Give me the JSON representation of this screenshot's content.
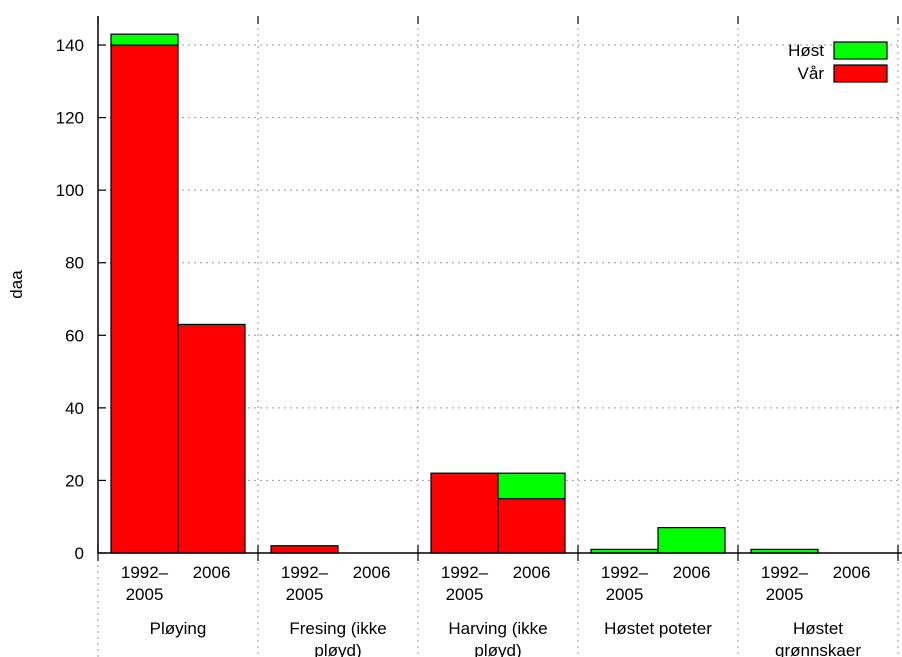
{
  "chart_data": {
    "type": "bar",
    "stacked": true,
    "ylabel": "daa",
    "ylim": [
      0,
      148
    ],
    "yticks": [
      0,
      20,
      40,
      60,
      80,
      100,
      120,
      140
    ],
    "grid": true,
    "legend_position": "top-right",
    "groups": [
      {
        "label": [
          "Pløying"
        ],
        "periods": [
          [
            "1992–",
            "2005"
          ],
          [
            "2006"
          ]
        ]
      },
      {
        "label": [
          "Fresing (ikke",
          "pløyd)"
        ],
        "periods": [
          [
            "1992–",
            "2005"
          ],
          [
            "2006"
          ]
        ]
      },
      {
        "label": [
          "Harving (ikke",
          "pløyd)"
        ],
        "periods": [
          [
            "1992–",
            "2005"
          ],
          [
            "2006"
          ]
        ]
      },
      {
        "label": [
          "Høstet poteter"
        ],
        "periods": [
          [
            "1992–",
            "2005"
          ],
          [
            "2006"
          ]
        ]
      },
      {
        "label": [
          "Høstet",
          "grønnskaer"
        ],
        "periods": [
          [
            "1992–",
            "2005"
          ],
          [
            "2006"
          ]
        ]
      }
    ],
    "series": [
      {
        "name": "Vår",
        "color": "#ff0000",
        "values": [
          [
            140,
            63
          ],
          [
            2,
            0
          ],
          [
            22,
            15
          ],
          [
            0,
            0
          ],
          [
            0,
            0
          ]
        ]
      },
      {
        "name": "Høst",
        "color": "#00ff00",
        "values": [
          [
            3,
            0
          ],
          [
            0,
            0
          ],
          [
            0,
            7
          ],
          [
            1,
            7
          ],
          [
            1,
            0
          ]
        ]
      }
    ],
    "legend_order": [
      "Høst",
      "Vår"
    ]
  }
}
